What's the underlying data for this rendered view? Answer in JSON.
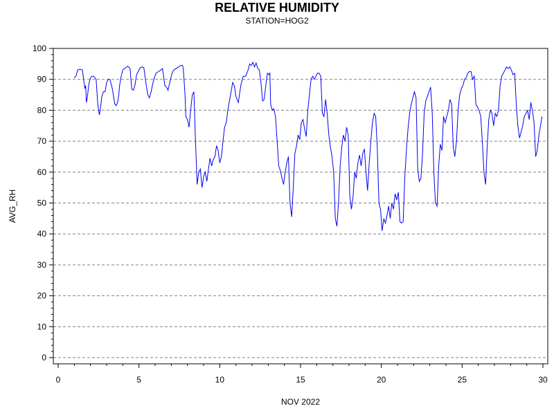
{
  "chart_data": {
    "type": "line",
    "title": "RELATIVE HUMIDITY",
    "subtitle": "STATION=HOG2",
    "xlabel": "NOV 2022",
    "ylabel": "AVG_RH",
    "xlim": [
      -0.3,
      30.3
    ],
    "ylim": [
      -2,
      100
    ],
    "x_ticks": [
      0,
      5,
      10,
      15,
      20,
      25,
      30
    ],
    "y_ticks": [
      0,
      10,
      20,
      30,
      40,
      50,
      60,
      70,
      80,
      90,
      100
    ],
    "grid": "horizontal dashed",
    "line_color": "#0000ee",
    "series": [
      {
        "x": [
          1.0,
          1.1,
          1.2,
          1.35,
          1.5,
          1.55,
          1.65,
          1.7,
          1.75,
          1.8,
          1.9,
          2.0,
          2.1,
          2.2,
          2.35,
          2.45,
          2.55,
          2.6,
          2.65,
          2.7,
          2.8,
          2.9,
          3.0,
          3.1,
          3.2,
          3.35,
          3.5,
          3.6,
          3.7,
          3.75,
          3.8,
          3.9,
          4.0,
          4.1,
          4.3,
          4.45,
          4.55,
          4.65,
          4.75,
          4.85,
          4.95,
          5.05,
          5.15,
          5.3,
          5.45,
          5.55,
          5.65,
          5.75,
          5.85,
          5.95,
          6.05,
          6.2,
          6.35,
          6.45,
          6.5,
          6.6,
          6.7,
          6.8,
          6.95,
          7.05,
          7.15,
          7.3,
          7.45,
          7.6,
          7.7,
          7.75,
          7.85,
          7.9,
          8.0,
          8.1,
          8.2,
          8.3,
          8.4,
          8.5,
          8.6,
          8.7,
          8.8,
          8.9,
          9.0,
          9.1,
          9.2,
          9.3,
          9.4,
          9.5,
          9.6,
          9.7,
          9.8,
          9.9,
          10.0,
          10.1,
          10.2,
          10.3,
          10.4,
          10.5,
          10.6,
          10.7,
          10.8,
          10.9,
          11.0,
          11.15,
          11.3,
          11.45,
          11.6,
          11.75,
          11.85,
          11.95,
          12.05,
          12.15,
          12.25,
          12.35,
          12.45,
          12.55,
          12.65,
          12.75,
          12.85,
          12.95,
          13.05,
          13.1,
          13.15,
          13.25,
          13.35,
          13.45,
          13.55,
          13.65,
          13.75,
          13.85,
          13.95,
          14.05,
          14.15,
          14.25,
          14.35,
          14.45,
          14.55,
          14.65,
          14.75,
          14.85,
          14.95,
          15.05,
          15.15,
          15.25,
          15.35,
          15.45,
          15.55,
          15.65,
          15.75,
          15.85,
          15.95,
          16.05,
          16.15,
          16.25,
          16.35,
          16.45,
          16.55,
          16.65,
          16.75,
          16.85,
          16.95,
          17.05,
          17.15,
          17.25,
          17.35,
          17.45,
          17.55,
          17.65,
          17.75,
          17.85,
          17.95,
          18.05,
          18.15,
          18.25,
          18.35,
          18.45,
          18.55,
          18.65,
          18.75,
          18.85,
          18.95,
          19.05,
          19.15,
          19.25,
          19.35,
          19.45,
          19.55,
          19.65,
          19.75,
          19.85,
          19.95,
          20.05,
          20.15,
          20.25,
          20.35,
          20.45,
          20.55,
          20.65,
          20.75,
          20.85,
          20.95,
          21.05,
          21.15,
          21.25,
          21.35,
          21.45,
          21.55,
          21.65,
          21.75,
          21.85,
          21.95,
          22.05,
          22.15,
          22.25,
          22.35,
          22.45,
          22.55,
          22.65,
          22.75,
          22.85,
          22.95,
          23.05,
          23.15,
          23.25,
          23.35,
          23.45,
          23.55,
          23.65,
          23.75,
          23.85,
          23.95,
          24.05,
          24.15,
          24.25,
          24.35,
          24.45,
          24.55,
          24.65,
          24.75,
          24.85,
          24.95,
          25.05,
          25.15,
          25.25,
          25.35,
          25.45,
          25.55,
          25.65,
          25.75,
          25.85,
          25.95,
          26.05,
          26.15,
          26.25,
          26.35,
          26.45,
          26.55,
          26.65,
          26.75,
          26.85,
          26.95,
          27.05,
          27.15,
          27.25,
          27.35,
          27.45,
          27.55,
          27.65,
          27.75,
          27.85,
          27.95,
          28.05,
          28.15,
          28.25,
          28.35,
          28.45,
          28.55,
          28.65,
          28.75,
          28.85,
          28.95,
          29.05,
          29.15,
          29.25,
          29.35,
          29.45,
          29.55,
          29.65,
          29.75,
          29.85,
          29.95
        ],
        "values": [
          90.5,
          91,
          93,
          93.3,
          93,
          91,
          87,
          88,
          82.5,
          84,
          88.5,
          90.5,
          91,
          91,
          90,
          82,
          78.5,
          80,
          82,
          84.5,
          86,
          86,
          89,
          90,
          90,
          87,
          82,
          81.5,
          83,
          85,
          88,
          91,
          93,
          93.5,
          94.3,
          93.5,
          87,
          86.5,
          88,
          91.5,
          92.5,
          93.5,
          94,
          93.8,
          88,
          85,
          84,
          86,
          88.5,
          90.5,
          92,
          92.5,
          93,
          93.5,
          92,
          88,
          87.5,
          86.5,
          90,
          92,
          93,
          93.5,
          94,
          94.5,
          94.5,
          93,
          85,
          78,
          77,
          74.5,
          80,
          85,
          86,
          70,
          56,
          60,
          61,
          55,
          58.5,
          60,
          57,
          61,
          64.5,
          62,
          64,
          65,
          68.5,
          67,
          63,
          65,
          70,
          74.5,
          76,
          80,
          83,
          86,
          89,
          88,
          84.5,
          82.5,
          88,
          91,
          91,
          93,
          95,
          94.5,
          95.5,
          94,
          95.3,
          93.5,
          93,
          89,
          83,
          83.5,
          88,
          92,
          91.5,
          92,
          82,
          80,
          80.5,
          78,
          70,
          62,
          60.5,
          58,
          56,
          60,
          63,
          65,
          50,
          45.5,
          55,
          66,
          68.5,
          72,
          70.5,
          76,
          77,
          74,
          71.5,
          80,
          85,
          90,
          91,
          90,
          91,
          92,
          92,
          91,
          79,
          78,
          83.5,
          79,
          72,
          68,
          65,
          60,
          45,
          42.5,
          50,
          62,
          68,
          72,
          70,
          74.5,
          72,
          52,
          48,
          52,
          60,
          58,
          63,
          65.5,
          62,
          66,
          67.5,
          60,
          54,
          63,
          70,
          76,
          79,
          78,
          68,
          50,
          48,
          41,
          45,
          43.5,
          46,
          49,
          45,
          50,
          48,
          53,
          51,
          53.5,
          44,
          43.5,
          44,
          58,
          67,
          74,
          79,
          82,
          84,
          86,
          84,
          61,
          57,
          58,
          66,
          79,
          83,
          84.5,
          86,
          87.5,
          79,
          60,
          50,
          49,
          62,
          69,
          67,
          78,
          76,
          78,
          80,
          83.5,
          82,
          68,
          65,
          70,
          80,
          85,
          87,
          88,
          90,
          90.5,
          92,
          92.5,
          92.5,
          90,
          91,
          82,
          81,
          80,
          78,
          70,
          60,
          56,
          68,
          77,
          80,
          79,
          75,
          79,
          78,
          80,
          88,
          91,
          92,
          93,
          94,
          93.5,
          94,
          93,
          91.5,
          92,
          82,
          75,
          71,
          73,
          75,
          78,
          79,
          80,
          77,
          82.5,
          80,
          76,
          65,
          67,
          72,
          75,
          78
        ]
      }
    ]
  }
}
